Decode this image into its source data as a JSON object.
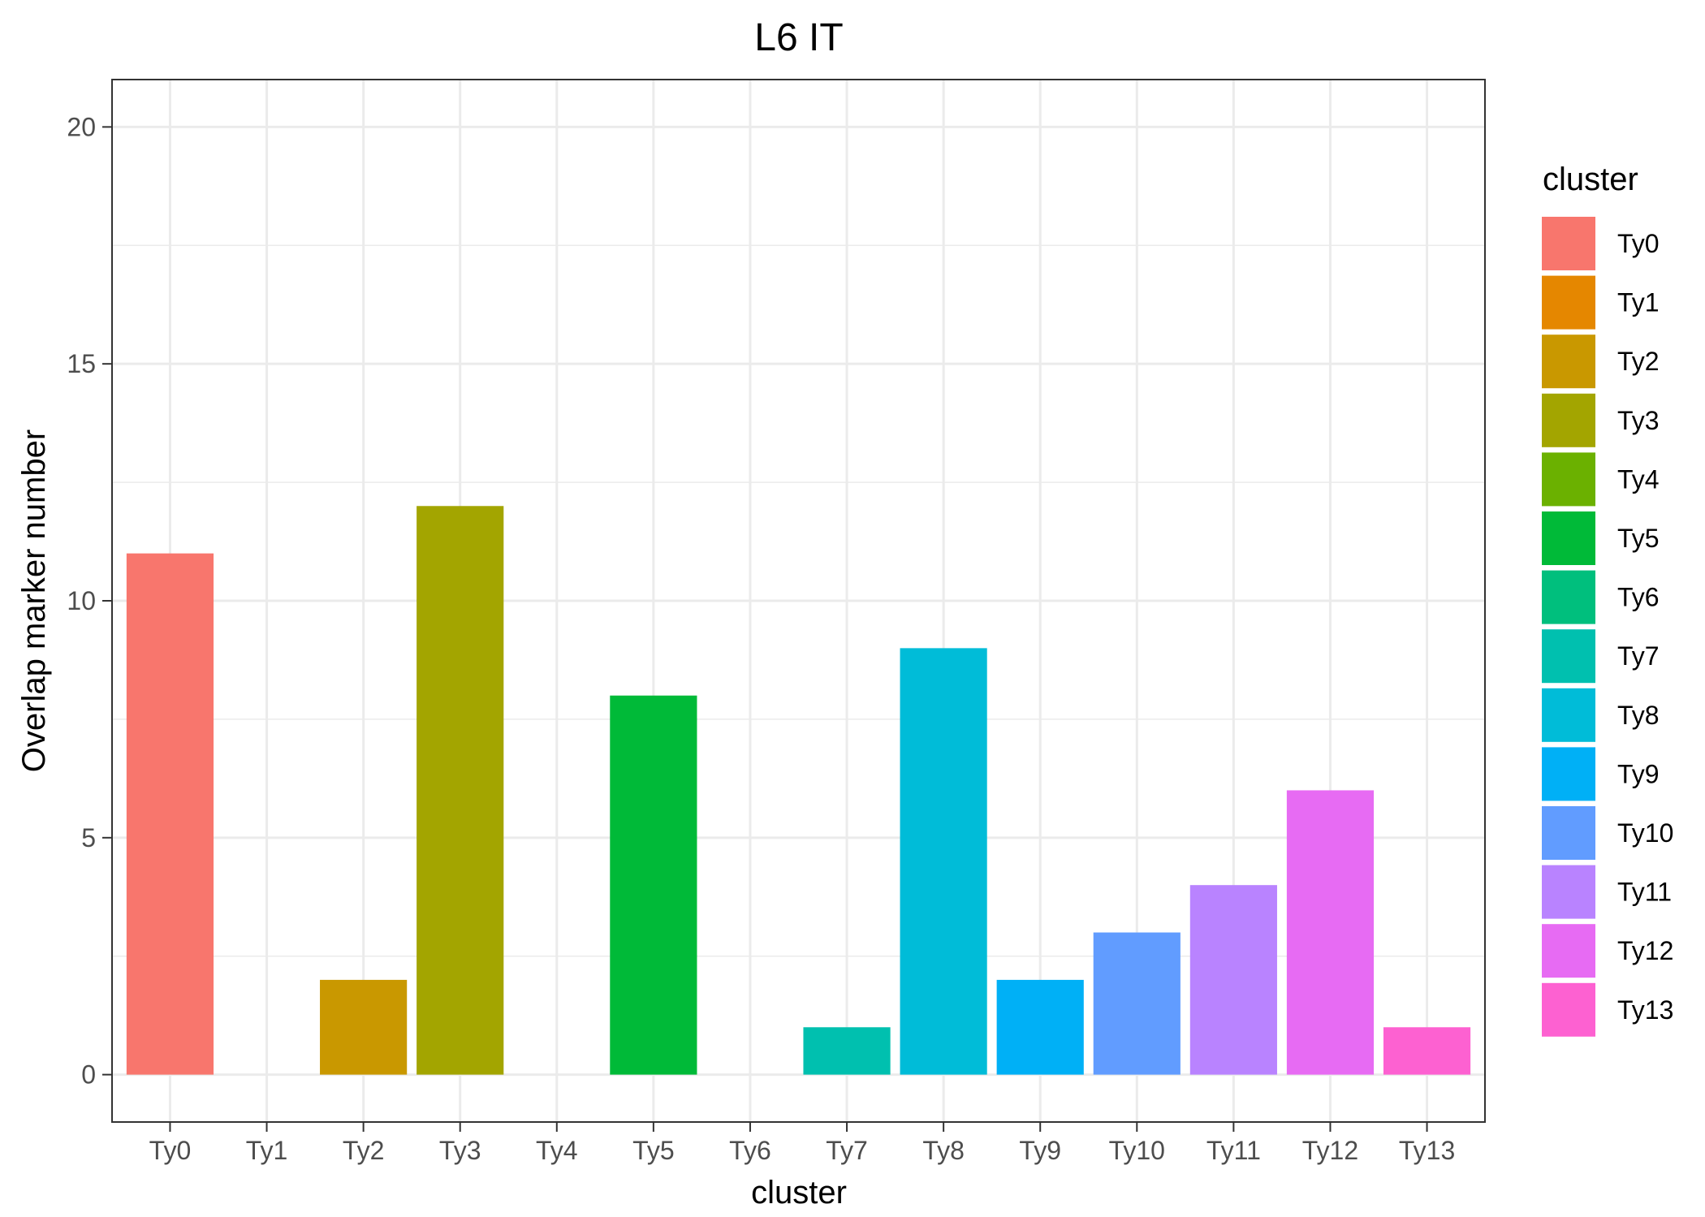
{
  "chart_data": {
    "type": "bar",
    "title": "L6 IT",
    "xlabel": "cluster",
    "ylabel": "Overlap marker number",
    "categories": [
      "Ty0",
      "Ty1",
      "Ty2",
      "Ty3",
      "Ty4",
      "Ty5",
      "Ty6",
      "Ty7",
      "Ty8",
      "Ty9",
      "Ty10",
      "Ty11",
      "Ty12",
      "Ty13"
    ],
    "values": [
      11,
      0,
      2,
      12,
      0,
      8,
      0,
      1,
      9,
      2,
      3,
      4,
      6,
      1
    ],
    "colors": [
      "#F8766D",
      "#E58700",
      "#C99800",
      "#A3A500",
      "#6BB100",
      "#00BA38",
      "#00BF7D",
      "#00C0AF",
      "#00BCD8",
      "#00B0F6",
      "#619CFF",
      "#B983FF",
      "#E76BF3",
      "#FD61D1"
    ],
    "ylim": [
      -1,
      21
    ],
    "yticks": [
      0,
      5,
      10,
      15,
      20
    ],
    "grid": true,
    "legend": {
      "title": "cluster",
      "position": "right"
    }
  }
}
